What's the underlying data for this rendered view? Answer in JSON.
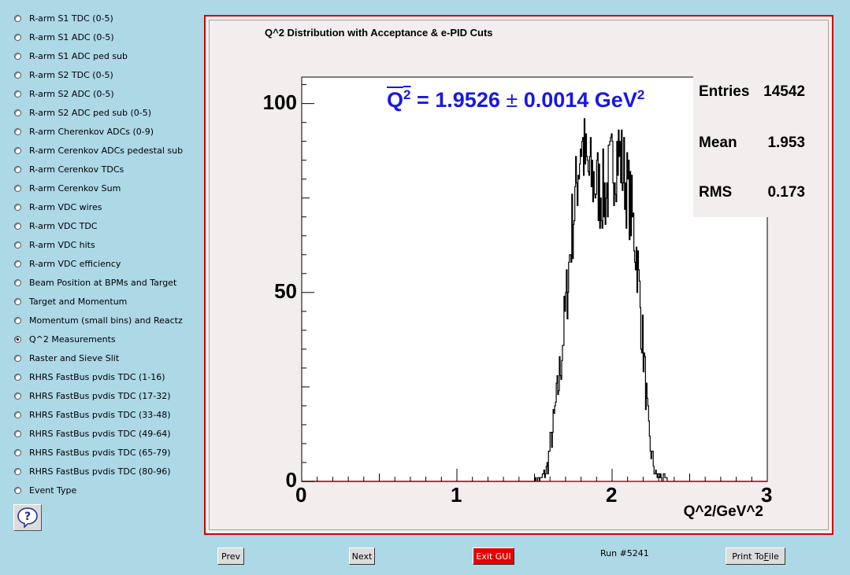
{
  "sidebar": {
    "items": [
      {
        "label": "R-arm S1 TDC (0-5)",
        "selected": false
      },
      {
        "label": "R-arm S1 ADC (0-5)",
        "selected": false
      },
      {
        "label": "R-arm S1 ADC ped sub",
        "selected": false
      },
      {
        "label": "R-arm S2 TDC (0-5)",
        "selected": false
      },
      {
        "label": "R-arm S2 ADC (0-5)",
        "selected": false
      },
      {
        "label": "R-arm S2 ADC ped sub (0-5)",
        "selected": false
      },
      {
        "label": "R-arm Cherenkov ADCs (0-9)",
        "selected": false
      },
      {
        "label": "R-arm Cerenkov ADCs pedestal sub",
        "selected": false
      },
      {
        "label": "R-arm Cerenkov TDCs",
        "selected": false
      },
      {
        "label": "R-arm Cerenkov Sum",
        "selected": false
      },
      {
        "label": "R-arm VDC wires",
        "selected": false
      },
      {
        "label": "R-arm VDC TDC",
        "selected": false
      },
      {
        "label": "R-arm VDC hits",
        "selected": false
      },
      {
        "label": "R-arm VDC efficiency",
        "selected": false
      },
      {
        "label": "Beam Position at BPMs and Target",
        "selected": false
      },
      {
        "label": "Target and Momentum",
        "selected": false
      },
      {
        "label": "Momentum (small bins) and Reactz",
        "selected": false
      },
      {
        "label": "Q^2 Measurements",
        "selected": true
      },
      {
        "label": "Raster and Sieve Slit",
        "selected": false
      },
      {
        "label": "RHRS FastBus pvdis TDC (1-16)",
        "selected": false
      },
      {
        "label": "RHRS FastBus pvdis TDC (17-32)",
        "selected": false
      },
      {
        "label": "RHRS FastBus pvdis TDC (33-48)",
        "selected": false
      },
      {
        "label": "RHRS FastBus pvdis TDC (49-64)",
        "selected": false
      },
      {
        "label": "RHRS FastBus pvdis TDC (65-79)",
        "selected": false
      },
      {
        "label": "RHRS FastBus pvdis TDC (80-96)",
        "selected": false
      },
      {
        "label": "Event Type",
        "selected": false
      }
    ],
    "help_icon": "question-icon"
  },
  "plot": {
    "title": "Q^2 Distribution with Acceptance & e-PID Cuts",
    "result": {
      "symbol": "Q",
      "power": "2",
      "value": "= 1.9526",
      "pm": "±",
      "error": "0.0014 GeV",
      "unit_power": "2"
    },
    "stats": {
      "entries_label": "Entries",
      "entries_value": "14542",
      "mean_label": "Mean",
      "mean_value": "1.953",
      "rms_label": "RMS",
      "rms_value": "0.173"
    },
    "xlabel": "Q^2/GeV^2"
  },
  "chart_data": {
    "type": "line",
    "title": "Q^2 Distribution with Acceptance & e-PID Cuts",
    "xlabel": "Q^2/GeV^2",
    "ylabel": "",
    "xlim": [
      0,
      3
    ],
    "ylim": [
      0,
      107
    ],
    "x_ticks": [
      "0",
      "1",
      "2",
      "3"
    ],
    "y_ticks": [
      "0",
      "50",
      "100"
    ],
    "y_tick_values": [
      0,
      50,
      100
    ],
    "histogram_envelope": {
      "x": [
        1.5,
        1.55,
        1.58,
        1.62,
        1.66,
        1.7,
        1.74,
        1.77,
        1.8,
        1.84,
        1.88,
        1.92,
        1.96,
        2.0,
        2.04,
        2.08,
        2.12,
        2.16,
        2.2,
        2.24,
        2.28,
        2.32,
        2.36,
        2.4
      ],
      "y": [
        0,
        1,
        3,
        14,
        27,
        45,
        66,
        77,
        91,
        82,
        80,
        77,
        76,
        83,
        88,
        81,
        73,
        60,
        36,
        10,
        2,
        1,
        0,
        0
      ]
    },
    "grid": false,
    "legend": "none"
  },
  "footer": {
    "prev_label": "Prev",
    "next_label": "Next",
    "exit_label": "Exit GUI",
    "run_label": "Run #5241",
    "print_label_pre": "Print To ",
    "print_label_u": "F",
    "print_label_post": "ile"
  },
  "colors": {
    "background": "#add8e6",
    "frame_border": "#d20000",
    "result_text": "#1717e8",
    "exit_button": "#e80000"
  }
}
